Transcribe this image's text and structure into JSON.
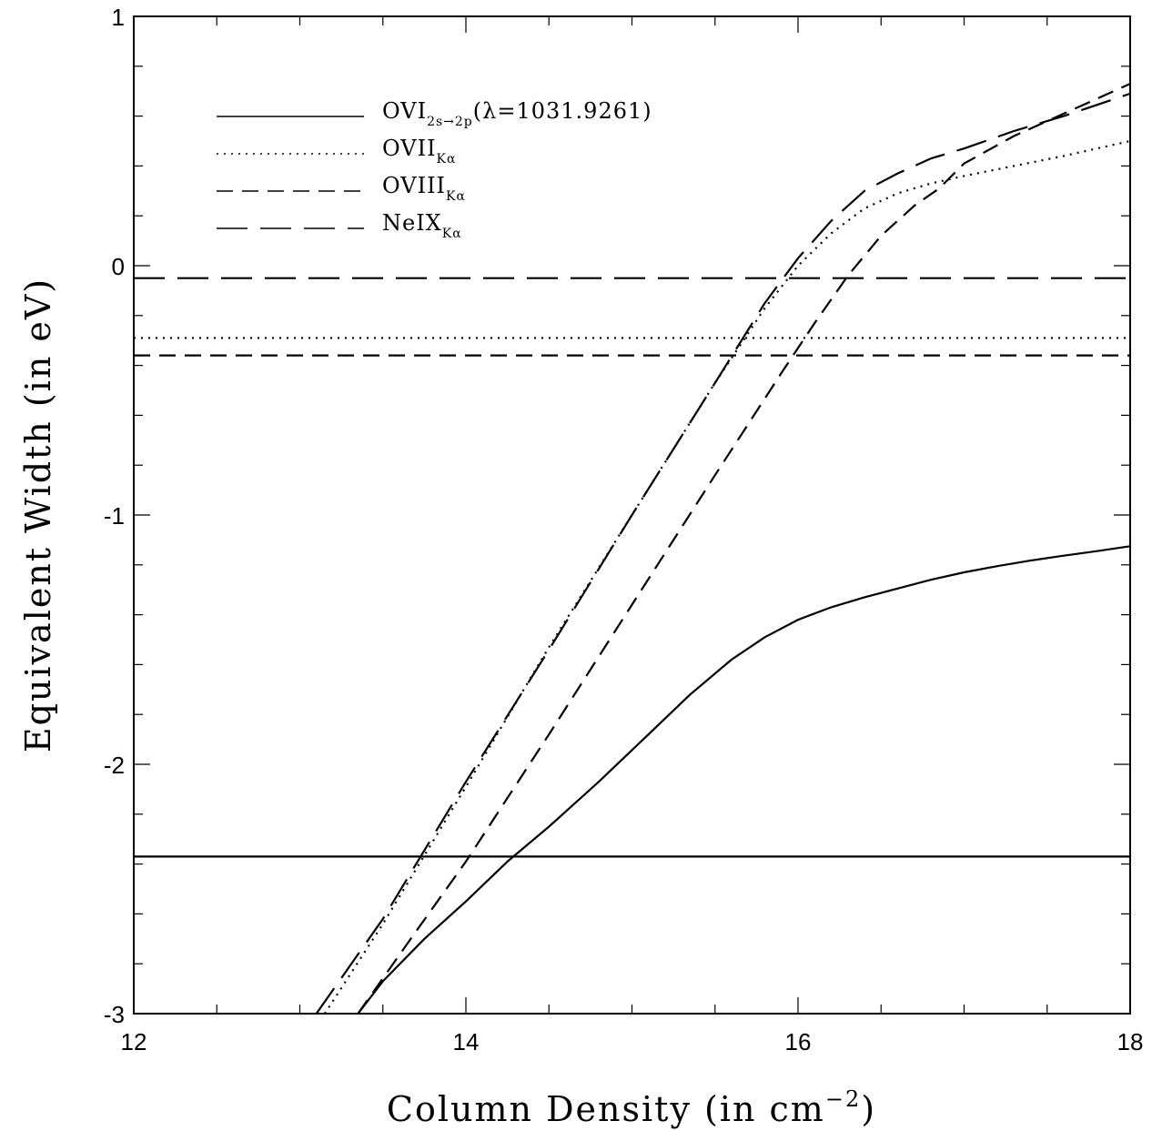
{
  "chart_data": {
    "type": "line",
    "xlabel": {
      "text": "Column Density (in cm",
      "superscript": "−2",
      "tail": ")"
    },
    "ylabel": "Equivalent Width (in eV)",
    "xlim": [
      12,
      18
    ],
    "ylim": [
      -3,
      1
    ],
    "x_ticks": [
      12,
      14,
      16,
      18
    ],
    "y_ticks": [
      -3,
      -2,
      -1,
      0,
      1
    ],
    "x_tick_labels": [
      "12",
      "14",
      "16",
      "18"
    ],
    "y_tick_labels": [
      "-3",
      "-2",
      "-1",
      "0",
      "1"
    ],
    "x_minor_step": 0.5,
    "y_minor_step": 0.2,
    "grid": false,
    "legend_placement": "top-left",
    "series": [
      {
        "name": "OVI",
        "subscript": "2s→2p",
        "suffix": "(λ=1031.9261)",
        "style": "solid",
        "x": [
          13.35,
          13.5,
          13.75,
          14.0,
          14.25,
          14.5,
          14.8,
          15.1,
          15.35,
          15.6,
          15.8,
          16.0,
          16.2,
          16.4,
          16.6,
          16.8,
          17.0,
          17.2,
          17.4,
          17.6,
          17.8,
          18.0
        ],
        "values": [
          -3.0,
          -2.87,
          -2.7,
          -2.55,
          -2.39,
          -2.25,
          -2.07,
          -1.88,
          -1.72,
          -1.58,
          -1.49,
          -1.42,
          -1.37,
          -1.33,
          -1.295,
          -1.26,
          -1.23,
          -1.205,
          -1.183,
          -1.163,
          -1.145,
          -1.125
        ]
      },
      {
        "name": "OVII",
        "subscript": "Kα",
        "suffix": "",
        "style": "dotted",
        "x": [
          13.15,
          13.5,
          14.0,
          14.5,
          15.0,
          15.5,
          15.8,
          16.0,
          16.2,
          16.4,
          16.6,
          16.8,
          17.0,
          17.3,
          17.6,
          18.0
        ],
        "values": [
          -3.0,
          -2.64,
          -2.09,
          -1.53,
          -1.0,
          -0.47,
          -0.17,
          0.0,
          0.13,
          0.23,
          0.29,
          0.33,
          0.36,
          0.4,
          0.44,
          0.5
        ]
      },
      {
        "name": "OVIII",
        "subscript": "Kα",
        "suffix": "",
        "style": "dashed",
        "x": [
          13.35,
          13.7,
          14.0,
          14.5,
          15.0,
          15.5,
          15.9,
          16.1,
          16.3,
          16.5,
          16.7,
          16.85,
          17.0,
          17.3,
          17.6,
          18.0
        ],
        "values": [
          -3.0,
          -2.67,
          -2.39,
          -1.88,
          -1.36,
          -0.84,
          -0.43,
          -0.23,
          -0.04,
          0.12,
          0.24,
          0.31,
          0.41,
          0.52,
          0.61,
          0.73
        ]
      },
      {
        "name": "NeIX",
        "subscript": "Kα",
        "suffix": "",
        "style": "longdash",
        "x": [
          13.1,
          13.5,
          14.0,
          14.5,
          15.0,
          15.5,
          15.8,
          16.0,
          16.2,
          16.4,
          16.6,
          16.8,
          17.0,
          17.3,
          17.6,
          18.0
        ],
        "values": [
          -3.0,
          -2.62,
          -2.07,
          -1.54,
          -1.0,
          -0.47,
          -0.15,
          0.03,
          0.18,
          0.3,
          0.37,
          0.43,
          0.47,
          0.54,
          0.6,
          0.69
        ]
      }
    ],
    "thresholds": [
      {
        "series": "NeIX",
        "style": "longdash",
        "y": -0.05
      },
      {
        "series": "OVII",
        "style": "dotted",
        "y": -0.29
      },
      {
        "series": "OVIII",
        "style": "dashed",
        "y": -0.36
      },
      {
        "series": "OVI",
        "style": "solid",
        "y": -2.37
      }
    ]
  }
}
